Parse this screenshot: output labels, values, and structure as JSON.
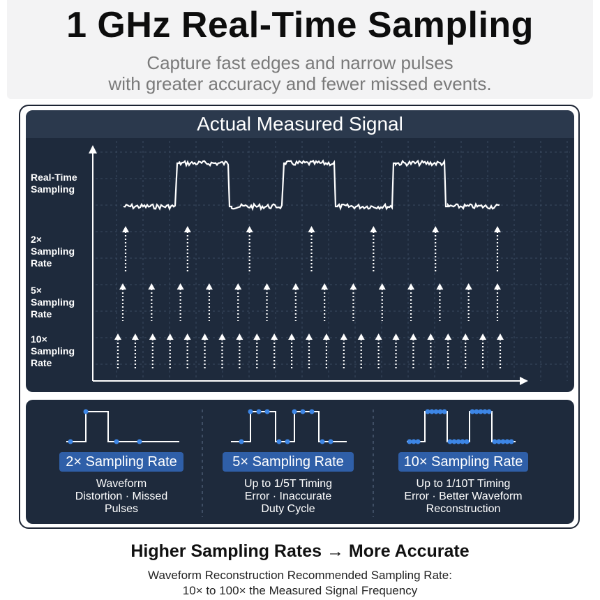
{
  "header": {
    "title": "1 GHz Real-Time Sampling",
    "subtitle_line1": "Capture fast edges and narrow pulses",
    "subtitle_line2": "with greater accuracy and fewer missed events."
  },
  "signal_panel": {
    "title": "Actual Measured Signal",
    "rows": [
      {
        "label": "Real-Time\nSampling"
      },
      {
        "label": "2×\nSampling\nRate",
        "arrow_count": 7
      },
      {
        "label": "5×\nSampling\nRate",
        "arrow_count": 14
      },
      {
        "label": "10×\nSampling\nRate",
        "arrow_count": 23
      }
    ]
  },
  "comparison": [
    {
      "badge": "2× Sampling Rate",
      "description": "Waveform\nDistortion · Missed\nPulses"
    },
    {
      "badge": "5× Sampling Rate",
      "description": "Up to 1/5T Timing\nError · Inaccurate\nDuty Cycle"
    },
    {
      "badge": "10× Sampling Rate",
      "description": "Up to 1/10T Timing\nError · Better Waveform\nReconstruction"
    }
  ],
  "footer": {
    "title": "Higher Sampling Rates → More Accurate",
    "subtitle": "Waveform Reconstruction Recommended Sampling Rate:\n10× to 100× the Measured Signal Frequency"
  },
  "colors": {
    "panel_bg": "#1e2a3c",
    "panel_header": "#2b394d",
    "badge": "#2f5fa8",
    "dot": "#3d86e6"
  }
}
